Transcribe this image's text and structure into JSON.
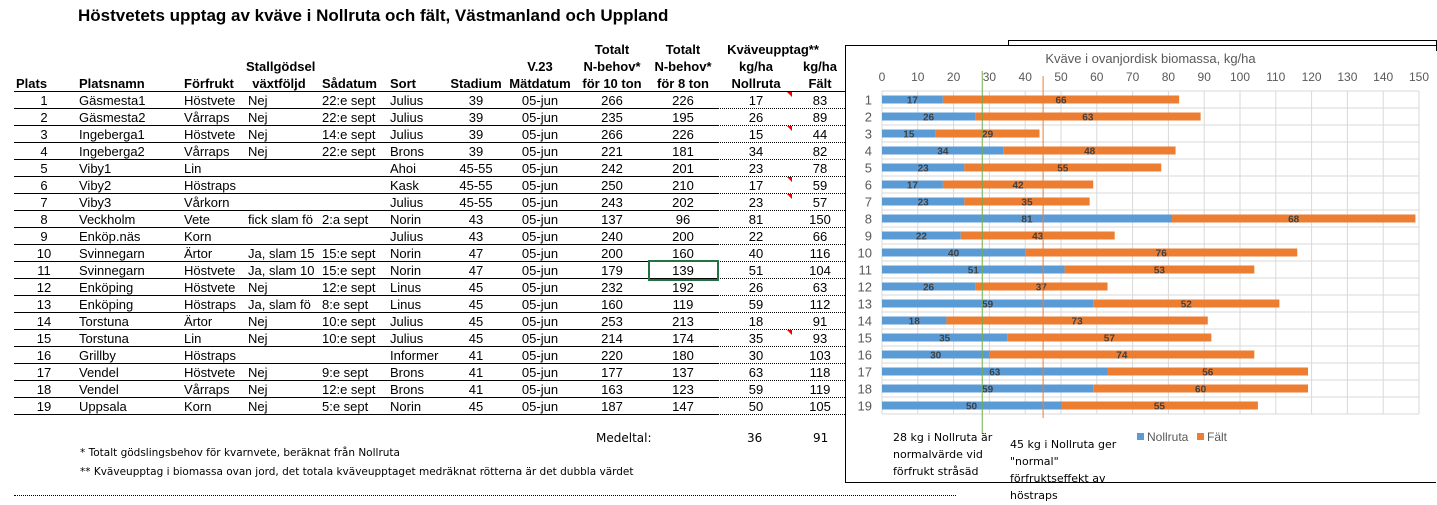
{
  "title": "Höstvetets upptag av kväve i Nollruta och fält, Västmanland och Uppland",
  "table": {
    "headers": [
      {
        "lines": [
          "",
          "",
          "Plats"
        ],
        "align": "left"
      },
      {
        "lines": [
          "",
          "",
          "Platsnamn"
        ],
        "align": "left"
      },
      {
        "lines": [
          "",
          "",
          "Förfrukt"
        ],
        "align": "left"
      },
      {
        "lines": [
          "",
          "Stallgödsel",
          "växtföljd"
        ],
        "align": "center"
      },
      {
        "lines": [
          "",
          "",
          "Sådatum"
        ],
        "align": "left"
      },
      {
        "lines": [
          "",
          "",
          "Sort"
        ],
        "align": "left"
      },
      {
        "lines": [
          "",
          "",
          "Stadium"
        ],
        "align": "center"
      },
      {
        "lines": [
          "",
          "V.23",
          "Mätdatum"
        ],
        "align": "center"
      },
      {
        "lines": [
          "Totalt",
          "N-behov*",
          "för 10 ton"
        ],
        "align": "center"
      },
      {
        "lines": [
          "Totalt",
          "N-behov*",
          "för 8 ton"
        ],
        "align": "center"
      },
      {
        "lines": [
          "Kväveupptag**",
          "kg/ha",
          "Nollruta"
        ],
        "align": "center"
      },
      {
        "lines": [
          "",
          "kg/ha",
          "Fält"
        ],
        "align": "center"
      }
    ],
    "rows": [
      [
        "1",
        "Gäsmesta1",
        "Höstvete",
        "Nej",
        "22:e sept",
        "Julius",
        "39",
        "05-jun",
        "266",
        "226",
        "17",
        "83"
      ],
      [
        "2",
        "Gäsmesta2",
        "Vårraps",
        "Nej",
        "22:e sept",
        "Julius",
        "39",
        "05-jun",
        "235",
        "195",
        "26",
        "89"
      ],
      [
        "3",
        "Ingeberga1",
        "Höstvete",
        "Nej",
        "14:e sept",
        "Julius",
        "39",
        "05-jun",
        "266",
        "226",
        "15",
        "44"
      ],
      [
        "4",
        "Ingeberga2",
        "Vårraps",
        "Nej",
        "22:e sept",
        "Brons",
        "39",
        "05-jun",
        "221",
        "181",
        "34",
        "82"
      ],
      [
        "5",
        "Viby1",
        "Lin",
        "",
        "",
        "Ahoi",
        "45-55",
        "05-jun",
        "242",
        "201",
        "23",
        "78"
      ],
      [
        "6",
        "Viby2",
        "Höstraps",
        "",
        "",
        "Kask",
        "45-55",
        "05-jun",
        "250",
        "210",
        "17",
        "59"
      ],
      [
        "7",
        "Viby3",
        "Vårkorn",
        "",
        "",
        "Julius",
        "45-55",
        "05-jun",
        "243",
        "202",
        "23",
        "57"
      ],
      [
        "8",
        "Veckholm",
        "Vete",
        "fick slam fö",
        "2:a sept",
        "Norin",
        "43",
        "05-jun",
        "137",
        "96",
        "81",
        "150"
      ],
      [
        "9",
        "Enköp.näs",
        "Korn",
        "",
        "",
        "Julius",
        "43",
        "05-jun",
        "240",
        "200",
        "22",
        "66"
      ],
      [
        "10",
        "Svinnegarn",
        "Ärtor",
        "Ja, slam 15",
        "15:e sept",
        "Norin",
        "47",
        "05-jun",
        "200",
        "160",
        "40",
        "116"
      ],
      [
        "11",
        "Svinnegarn",
        "Höstvete",
        "Ja, slam 10",
        "15:e sept",
        "Norin",
        "47",
        "05-jun",
        "179",
        "139",
        "51",
        "104"
      ],
      [
        "12",
        "Enköping",
        "Höstvete",
        "Nej",
        "12:e sept",
        "Linus",
        "45",
        "05-jun",
        "232",
        "192",
        "26",
        "63"
      ],
      [
        "13",
        "Enköping",
        "Höstraps",
        "Ja, slam fö",
        "8:e sept",
        "Linus",
        "45",
        "05-jun",
        "160",
        "119",
        "59",
        "112"
      ],
      [
        "14",
        "Torstuna",
        "Ärtor",
        "Nej",
        "10:e sept",
        "Julius",
        "45",
        "05-jun",
        "253",
        "213",
        "18",
        "91"
      ],
      [
        "15",
        "Torstuna",
        "Lin",
        "Nej",
        "10:e sept",
        "Julius",
        "45",
        "05-jun",
        "214",
        "174",
        "35",
        "93"
      ],
      [
        "16",
        "Grillby",
        "Höstraps",
        "",
        "",
        "Informer",
        "41",
        "05-jun",
        "220",
        "180",
        "30",
        "103"
      ],
      [
        "17",
        "Vendel",
        "Höstvete",
        "Nej",
        "9:e sept",
        "Brons",
        "41",
        "05-jun",
        "177",
        "137",
        "63",
        "118"
      ],
      [
        "18",
        "Vendel",
        "Vårraps",
        "Nej",
        "12:e sept",
        "Brons",
        "41",
        "05-jun",
        "163",
        "123",
        "59",
        "119"
      ],
      [
        "19",
        "Uppsala",
        "Korn",
        "Nej",
        "5:e sept",
        "Norin",
        "45",
        "05-jun",
        "187",
        "147",
        "50",
        "105"
      ]
    ],
    "comment_flags_rows": [
      1,
      3,
      6,
      7,
      15
    ],
    "selected_cell": {
      "row": 11,
      "col": "Totalt N-behov för 8 ton"
    },
    "mean_label": "Medeltal:",
    "mean_nollruta": "36",
    "mean_falt": "91"
  },
  "footnotes": [
    "* Totalt gödslingsbehov för kvarnvete, beräknat från Nollruta",
    "** Kväveupptag i biomassa ovan jord, det totala kväveupptaget medräknat rötterna är det dubbla värdet"
  ],
  "chart_data": {
    "type": "bar",
    "orientation": "horizontal",
    "stacked": true,
    "title": "Kväve i ovanjordisk biomassa, kg/ha",
    "categories": [
      "1",
      "2",
      "3",
      "4",
      "5",
      "6",
      "7",
      "8",
      "9",
      "10",
      "11",
      "12",
      "13",
      "14",
      "15",
      "16",
      "17",
      "18",
      "19"
    ],
    "series": [
      {
        "name": "Nollruta",
        "color": "#5b9bd5",
        "values": [
          17,
          26,
          15,
          34,
          23,
          17,
          23,
          81,
          22,
          40,
          51,
          26,
          59,
          18,
          35,
          30,
          63,
          59,
          50
        ]
      },
      {
        "name": "Fält",
        "color": "#ed7d31",
        "values": [
          66,
          63,
          29,
          48,
          55,
          42,
          35,
          68,
          43,
          76,
          53,
          37,
          52,
          73,
          57,
          74,
          56,
          60,
          55
        ]
      }
    ],
    "xlim": [
      0,
      150
    ],
    "xticks": [
      "0",
      "10",
      "20",
      "30",
      "40",
      "50",
      "60",
      "70",
      "80",
      "90",
      "100",
      "110",
      "120",
      "130",
      "140",
      "150"
    ],
    "xaxis_position": "top",
    "grid": true,
    "legend": "bottom",
    "reference_lines": [
      {
        "value": 28,
        "color": "#70ad47",
        "annotation": "28 kg i Nollruta är normalvärde vid förfrukt stråsäd"
      },
      {
        "value": 45,
        "color": "#ed7d31",
        "annotation": "45 kg i Nollruta ger \"normal\" förfruktseffekt av höstraps"
      }
    ]
  }
}
